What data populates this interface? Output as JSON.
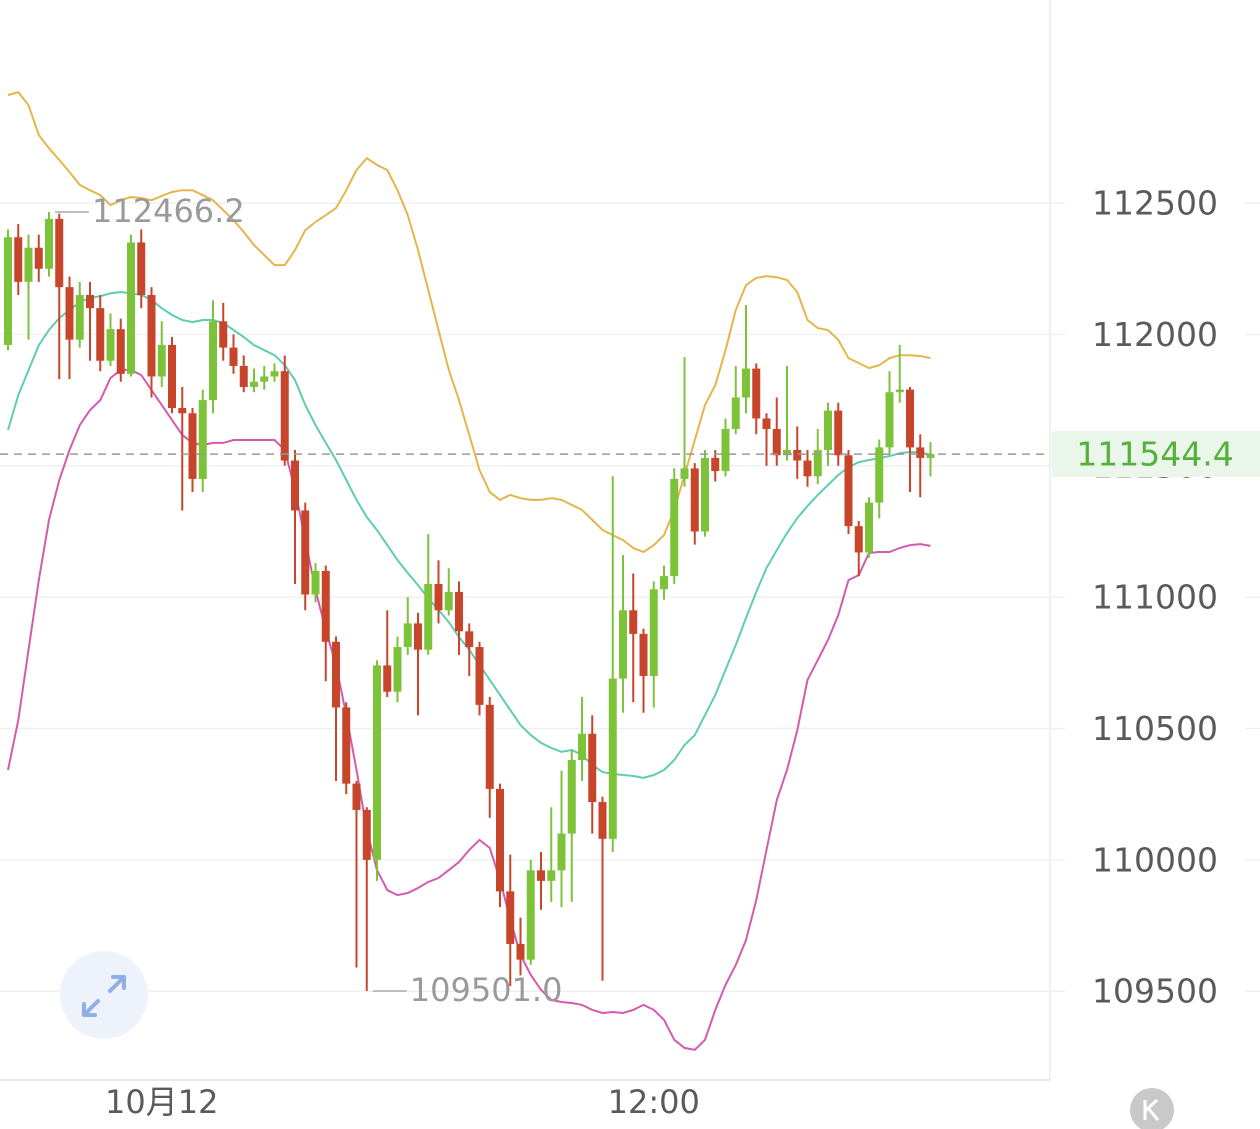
{
  "chart_data": {
    "type": "candlestick",
    "categories": [
      null,
      null,
      null,
      null,
      null,
      null,
      null,
      null,
      null,
      null,
      null,
      null,
      null,
      null,
      null,
      "10月12",
      null,
      null,
      null,
      null,
      null,
      null,
      null,
      null,
      null,
      null,
      null,
      null,
      null,
      null,
      null,
      null,
      null,
      null,
      null,
      null,
      null,
      null,
      null,
      null,
      null,
      null,
      null,
      null,
      null,
      null,
      null,
      null,
      null,
      null,
      null,
      null,
      null,
      null,
      null,
      null,
      null,
      null,
      null,
      null,
      null,
      null,
      null,
      "12:00",
      null,
      null,
      null,
      null,
      null,
      null,
      null,
      null,
      null,
      null,
      null,
      null,
      null,
      null,
      null,
      null,
      null,
      null,
      null,
      null,
      null,
      null,
      null,
      null,
      null,
      null,
      null
    ],
    "open": [
      111960,
      112370,
      112200,
      112330,
      112250,
      112440,
      112180,
      111980,
      112150,
      112100,
      111900,
      112020,
      111850,
      112350,
      112150,
      111840,
      111960,
      111720,
      111700,
      111450,
      111750,
      112050,
      111950,
      111880,
      111800,
      111820,
      111840,
      111860,
      111520,
      111330,
      111010,
      111100,
      110830,
      110580,
      110290,
      110190,
      110000,
      110740,
      110640,
      110810,
      110900,
      110800,
      111050,
      110950,
      111020,
      110870,
      110810,
      110590,
      110270,
      109880,
      109680,
      109620,
      109960,
      109920,
      109960,
      110100,
      110380,
      110480,
      110220,
      110080,
      110690,
      110950,
      110860,
      110700,
      111030,
      111080,
      111450,
      111490,
      111250,
      111530,
      111480,
      111640,
      111760,
      111870,
      111680,
      111640,
      111540,
      111560,
      111520,
      111460,
      111560,
      111710,
      111540,
      111270,
      111170,
      111360,
      111570,
      111780,
      111790,
      111570,
      111530
    ],
    "high": [
      112400,
      112420,
      112380,
      112380,
      112466.2,
      112460,
      112220,
      112200,
      112200,
      112150,
      112080,
      112060,
      112380,
      112400,
      112180,
      112050,
      111990,
      111800,
      111720,
      111790,
      112130,
      112120,
      112000,
      111920,
      111870,
      111880,
      111890,
      111920,
      111560,
      111360,
      111130,
      111120,
      110850,
      110600,
      110300,
      110200,
      110760,
      110950,
      110850,
      111000,
      110940,
      111240,
      111140,
      111110,
      111060,
      110900,
      110830,
      110620,
      110290,
      110020,
      109780,
      110000,
      110030,
      110200,
      110340,
      110420,
      110620,
      110550,
      110240,
      111460,
      111160,
      111090,
      110880,
      111060,
      111120,
      111490,
      111914,
      111510,
      111560,
      111560,
      111680,
      111880,
      112112,
      111890,
      111700,
      111760,
      111880,
      111650,
      111560,
      111640,
      111740,
      111740,
      111560,
      111290,
      111380,
      111600,
      111860,
      111960,
      111800,
      111620,
      111590
    ],
    "low": [
      111940,
      112150,
      111980,
      112200,
      112220,
      111830,
      111830,
      111950,
      111900,
      111860,
      111880,
      111820,
      111840,
      112100,
      111760,
      111800,
      111700,
      111330,
      111400,
      111400,
      111700,
      111900,
      111850,
      111780,
      111780,
      111790,
      111820,
      111500,
      111050,
      110950,
      110980,
      110680,
      110300,
      110250,
      109590,
      109501.0,
      109920,
      110620,
      110600,
      110780,
      110550,
      110780,
      110900,
      110930,
      110780,
      110700,
      110550,
      110160,
      109820,
      109520,
      109560,
      109600,
      109810,
      109840,
      109820,
      109840,
      110300,
      110100,
      109540,
      110030,
      110560,
      110600,
      110560,
      110580,
      110990,
      111050,
      111420,
      111200,
      111230,
      111440,
      111460,
      111620,
      111700,
      111620,
      111500,
      111500,
      111520,
      111450,
      111420,
      111430,
      111500,
      111500,
      111240,
      111080,
      111150,
      111300,
      111540,
      111740,
      111400,
      111380,
      111460
    ],
    "close": [
      112370,
      112200,
      112330,
      112250,
      112440,
      112180,
      111980,
      112150,
      112100,
      111900,
      112020,
      111850,
      112350,
      112150,
      111840,
      111960,
      111720,
      111700,
      111450,
      111750,
      112050,
      111950,
      111880,
      111800,
      111820,
      111840,
      111860,
      111520,
      111330,
      111010,
      111100,
      110830,
      110580,
      110290,
      110190,
      110000,
      110740,
      110640,
      110810,
      110900,
      110800,
      111050,
      110950,
      111020,
      110870,
      110810,
      110590,
      110270,
      109880,
      109680,
      109620,
      109960,
      109920,
      109960,
      110100,
      110380,
      110480,
      110220,
      110080,
      110690,
      110950,
      110860,
      110700,
      111030,
      111080,
      111450,
      111490,
      111250,
      111530,
      111480,
      111640,
      111760,
      111870,
      111680,
      111640,
      111540,
      111560,
      111520,
      111460,
      111560,
      111710,
      111540,
      111270,
      111170,
      111360,
      111570,
      111780,
      111790,
      111570,
      111530,
      111544.4
    ],
    "low_extreme_label": "109501.0",
    "up_color": "#7cc33a",
    "down_color": "#c7452a",
    "overlays": [
      {
        "color": "#e6b54a",
        "values": [
          112911,
          112922,
          112873,
          112759,
          112709,
          112664,
          112618,
          112569,
          112549,
          112530,
          112492,
          112511,
          112523,
          112519,
          112511,
          112527,
          112542,
          112549,
          112549,
          112530,
          112511,
          112473,
          112435,
          112390,
          112340,
          112302,
          112264,
          112264,
          112321,
          112397,
          112428,
          112454,
          112481,
          112549,
          112626,
          112671,
          112645,
          112626,
          112549,
          112454,
          112321,
          112169,
          112017,
          111865,
          111750,
          111617,
          111484,
          111400,
          111370,
          111389,
          111377,
          111370,
          111370,
          111377,
          111370,
          111351,
          111332,
          111294,
          111256,
          111236,
          111217,
          111187,
          111172,
          111198,
          111236,
          111332,
          111465,
          111598,
          111731,
          111807,
          111940,
          112093,
          112188,
          112215,
          112222,
          112218,
          112207,
          112161,
          112055,
          112024,
          112017,
          111979,
          111910,
          111891,
          111872,
          111883,
          111910,
          111921,
          111921,
          111918,
          111910
        ]
      },
      {
        "color": "#5fcdb0",
        "values": [
          111636,
          111769,
          111864,
          111959,
          112017,
          112062,
          112093,
          112123,
          112138,
          112146,
          112157,
          112161,
          112157,
          112150,
          112131,
          112100,
          112074,
          112055,
          112047,
          112055,
          112055,
          112043,
          112017,
          111990,
          111959,
          111940,
          111921,
          111883,
          111826,
          111731,
          111655,
          111587,
          111522,
          111446,
          111370,
          111305,
          111255,
          111198,
          111141,
          111092,
          111046,
          110996,
          110951,
          110905,
          110848,
          110799,
          110742,
          110685,
          110628,
          110570,
          110513,
          110475,
          110445,
          110426,
          110411,
          110418,
          110399,
          110361,
          110334,
          110327,
          110323,
          110319,
          110312,
          110323,
          110342,
          110380,
          110437,
          110475,
          110551,
          110628,
          110723,
          110818,
          110921,
          111020,
          111111,
          111179,
          111244,
          111301,
          111347,
          111389,
          111427,
          111465,
          111495,
          111514,
          111522,
          111529,
          111537,
          111548,
          111552,
          111552,
          111541
        ]
      },
      {
        "color": "#d45ab0",
        "values": [
          110342,
          110532,
          110799,
          111065,
          111294,
          111446,
          111560,
          111655,
          111712,
          111750,
          111834,
          111865,
          111865,
          111845,
          111788,
          111731,
          111674,
          111617,
          111587,
          111579,
          111587,
          111587,
          111598,
          111598,
          111598,
          111598,
          111598,
          111560,
          111408,
          111217,
          111027,
          110875,
          110742,
          110551,
          110342,
          110114,
          109961,
          109885,
          109866,
          109874,
          109893,
          109916,
          109931,
          109961,
          109992,
          110038,
          110076,
          110045,
          109924,
          109772,
          109638,
          109562,
          109505,
          109467,
          109459,
          109455,
          109448,
          109429,
          109417,
          109421,
          109417,
          109429,
          109448,
          109429,
          109391,
          109315,
          109284,
          109277,
          109315,
          109429,
          109524,
          109600,
          109695,
          109847,
          110038,
          110228,
          110342,
          110494,
          110685,
          110761,
          110837,
          110932,
          111065,
          111084,
          111168,
          111172,
          111172,
          111187,
          111198,
          111202,
          111195
        ]
      }
    ],
    "ylim": [
      109162,
      113273
    ],
    "yticks": [
      109500,
      110000,
      110500,
      111000,
      111500,
      112000,
      112500
    ],
    "grid": true
  }
}
